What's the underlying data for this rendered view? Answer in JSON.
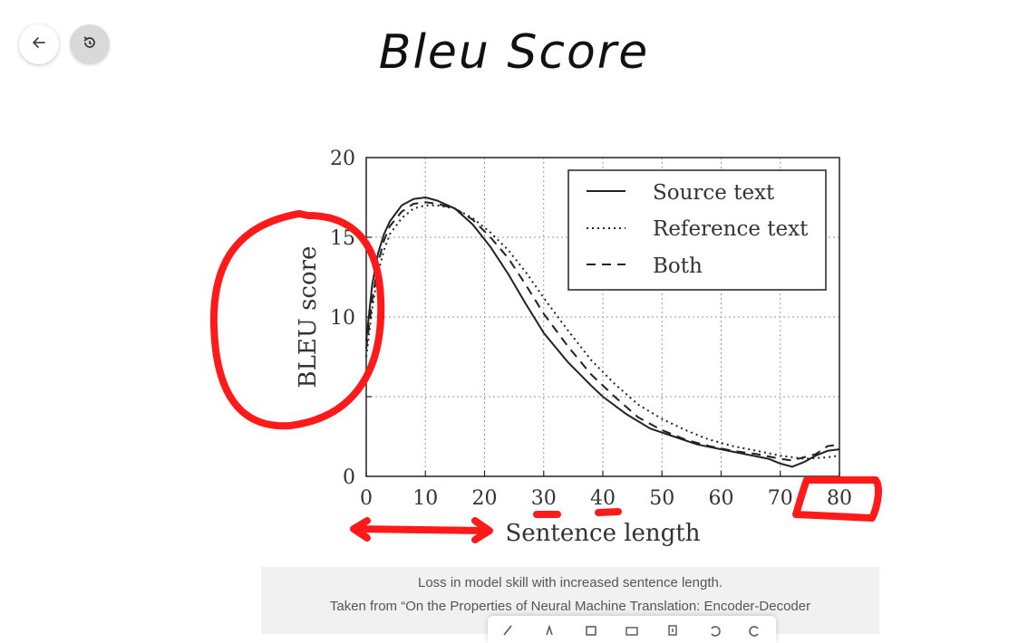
{
  "slide": {
    "title": "Bleu Score"
  },
  "nav": {
    "back_icon": "arrow-left-icon",
    "history_icon": "history-icon"
  },
  "chart_data": {
    "type": "line",
    "title": "",
    "xlabel": "Sentence length",
    "ylabel": "BLEU score",
    "xlim": [
      0,
      80
    ],
    "ylim": [
      0,
      20
    ],
    "xticks": [
      "0",
      "10",
      "20",
      "30",
      "40",
      "50",
      "60",
      "70",
      "80"
    ],
    "yticks": [
      "0",
      "10",
      "15",
      "20"
    ],
    "grid": true,
    "legend_position": "top-right",
    "series": [
      {
        "name": "Source text",
        "style": "solid",
        "x": [
          0,
          1,
          2,
          3,
          4,
          6,
          8,
          10,
          12,
          15,
          18,
          21,
          24,
          27,
          30,
          34,
          38,
          40,
          44,
          48,
          52,
          56,
          60,
          64,
          68,
          70,
          72,
          74,
          76,
          78,
          80
        ],
        "y": [
          8.5,
          12,
          14,
          15.2,
          16,
          17,
          17.4,
          17.5,
          17.3,
          16.8,
          15.8,
          14.4,
          12.7,
          10.8,
          9.0,
          7.2,
          5.7,
          5.0,
          3.9,
          3.0,
          2.5,
          2.0,
          1.7,
          1.4,
          1.1,
          0.8,
          0.6,
          0.9,
          1.3,
          1.6,
          1.7
        ]
      },
      {
        "name": "Reference text",
        "style": "dotted",
        "x": [
          0,
          1,
          2,
          3,
          4,
          6,
          8,
          10,
          12,
          15,
          18,
          21,
          24,
          27,
          30,
          34,
          38,
          42,
          46,
          50,
          54,
          58,
          62,
          66,
          70,
          74,
          78,
          80
        ],
        "y": [
          7.5,
          10.5,
          12.8,
          14.2,
          15.2,
          16.2,
          16.8,
          17.0,
          17.0,
          16.8,
          16.2,
          15.3,
          14.2,
          12.8,
          11.2,
          9.2,
          7.3,
          5.8,
          4.5,
          3.6,
          2.9,
          2.3,
          1.9,
          1.6,
          1.3,
          1.1,
          1.2,
          1.3
        ]
      },
      {
        "name": "Both",
        "style": "dashed",
        "x": [
          0,
          1,
          2,
          3,
          4,
          6,
          8,
          10,
          12,
          15,
          18,
          21,
          24,
          27,
          30,
          34,
          38,
          42,
          46,
          50,
          54,
          58,
          62,
          66,
          70,
          72,
          74,
          76,
          78,
          80
        ],
        "y": [
          8,
          11,
          13.4,
          14.8,
          15.7,
          16.6,
          17.1,
          17.2,
          17.1,
          16.8,
          16.1,
          15.0,
          13.7,
          12.0,
          10.2,
          8.2,
          6.4,
          5.0,
          3.7,
          2.9,
          2.3,
          1.9,
          1.6,
          1.4,
          1.1,
          1.0,
          1.2,
          1.4,
          1.9,
          2.0
        ]
      }
    ]
  },
  "annotations": {
    "color": "#ff1a1a",
    "items": [
      "circle-around-ylabel",
      "underline-30",
      "underline-40",
      "box-around-80",
      "double-arrow-under-xaxis"
    ]
  },
  "caption": {
    "line1": "Loss in model skill with increased sentence length.",
    "line2": "Taken from “On the Properties of Neural Machine Translation: Encoder-Decoder"
  },
  "toolbar": {
    "tools": [
      "pen-icon",
      "highlighter-icon",
      "eraser-icon",
      "text-box-icon",
      "insert-icon",
      "undo-icon",
      "redo-icon"
    ]
  }
}
